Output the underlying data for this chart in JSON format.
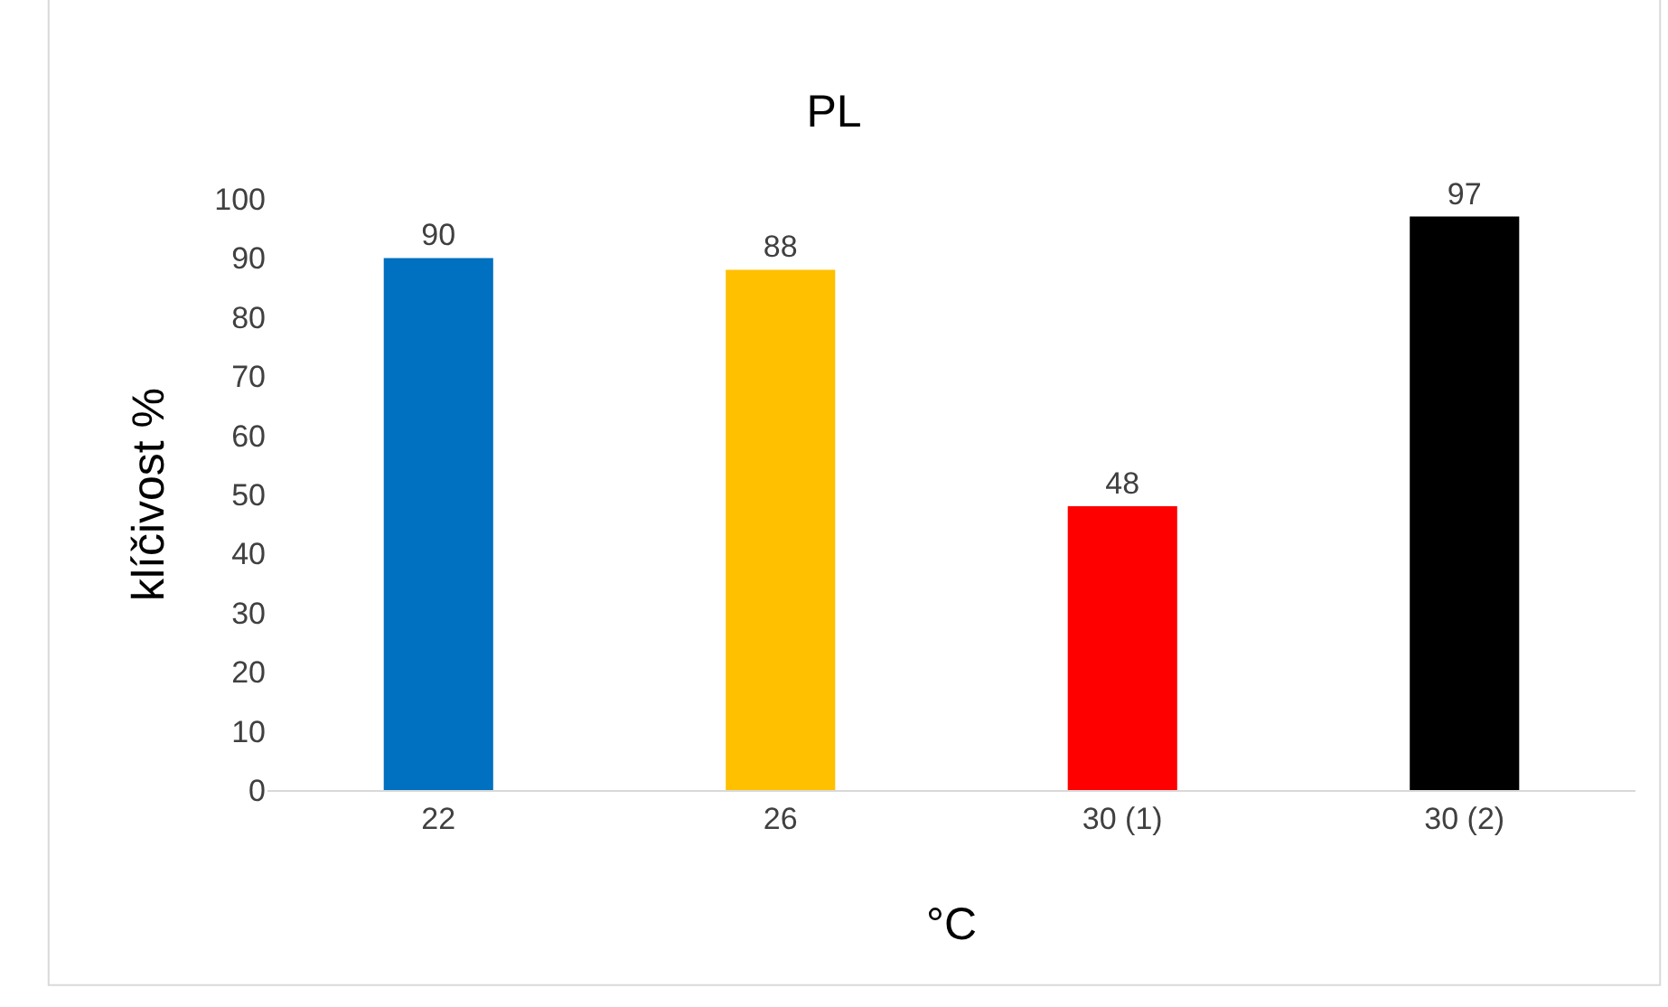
{
  "chart_data": {
    "type": "bar",
    "title": "PL",
    "xlabel": "°C",
    "ylabel": "klíčivost %",
    "categories": [
      "22",
      "26",
      "30 (1)",
      "30 (2)"
    ],
    "values": [
      90,
      88,
      48,
      97
    ],
    "colors": [
      "#0070c0",
      "#ffc000",
      "#ff0000",
      "#000000"
    ],
    "ylim": [
      0,
      100
    ],
    "yticks": [
      0,
      10,
      20,
      30,
      40,
      50,
      60,
      70,
      80,
      90,
      100
    ],
    "data_labels": true,
    "grid": false,
    "legend": false
  }
}
